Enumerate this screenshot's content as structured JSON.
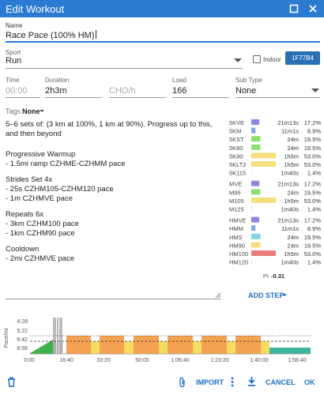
{
  "header": {
    "title": "Edit Workout"
  },
  "form": {
    "name": {
      "label": "Name",
      "value": "Race Pace (100% HM)"
    },
    "sport": {
      "label": "Sport",
      "value": "Run"
    },
    "indoor": {
      "label": "Indoor"
    },
    "color_button": "1F77B4",
    "time": {
      "label": "Time",
      "placeholder": "00:00"
    },
    "duration": {
      "label": "Duration",
      "value": "2h3m"
    },
    "cho": {
      "placeholder": "CHO/h"
    },
    "load": {
      "label": "Load",
      "value": "166"
    },
    "sub_type": {
      "label": "Sub Type",
      "value": "None"
    },
    "tags": {
      "label": "Tags",
      "value": "None"
    }
  },
  "description": [
    [
      "5–6 sets of: (3 km at 100%, 1 km at 90%). Progress up to this,",
      "and then beyond"
    ],
    [
      "Progressive Warmup",
      "- 1.5mi ramp CZHME-CZHMM pace"
    ],
    [
      "Strides Set 4x",
      "- 25s CZHM105-CZHM120 pace",
      "- 1m CZHMVE pace"
    ],
    [
      "Repeats 6x",
      "- 3km CZHM100 pace",
      "- 1km CZHM90 pace"
    ],
    [
      "Cooldown",
      "- 2mi CZHMVE pace"
    ]
  ],
  "zones": [
    [
      {
        "zone": "5KVE",
        "time": "21m13s",
        "percent": 17.2,
        "percent_label": "17.2%",
        "color": "#8c86e6"
      },
      {
        "zone": "5KM",
        "time": "11m1s",
        "percent": 8.9,
        "percent_label": "8.9%",
        "color": "#7ea8ea"
      },
      {
        "zone": "5KST",
        "time": "24m",
        "percent": 19.5,
        "percent_label": "19.5%",
        "color": "#8be06f"
      },
      {
        "zone": "5K80",
        "time": "24m",
        "percent": 19.5,
        "percent_label": "19.5%",
        "color": "#8be06f"
      },
      {
        "zone": "5K90",
        "time": "1h5m",
        "percent": 53.0,
        "percent_label": "53.0%",
        "color": "#f3e07c"
      },
      {
        "zone": "5KLT2",
        "time": "1h5m",
        "percent": 53.0,
        "percent_label": "53.0%",
        "color": "#f3e07c"
      },
      {
        "zone": "5K115",
        "time": "1m40s",
        "percent": 1.4,
        "percent_label": "1.4%",
        "color": "#e4e4e4"
      }
    ],
    [
      {
        "zone": "MVE",
        "time": "21m13s",
        "percent": 17.2,
        "percent_label": "17.2%",
        "color": "#8c86e6"
      },
      {
        "zone": "M95",
        "time": "24m",
        "percent": 19.5,
        "percent_label": "19.5%",
        "color": "#8be06f"
      },
      {
        "zone": "M105",
        "time": "1h5m",
        "percent": 53.0,
        "percent_label": "53.0%",
        "color": "#f3e07c"
      },
      {
        "zone": "M125",
        "time": "1m40s",
        "percent": 1.4,
        "percent_label": "1.4%",
        "color": "#e4e4e4"
      }
    ],
    [
      {
        "zone": "HMVE",
        "time": "21m13s",
        "percent": 17.2,
        "percent_label": "17.2%",
        "color": "#8c86e6"
      },
      {
        "zone": "HMM",
        "time": "11m1s",
        "percent": 8.9,
        "percent_label": "8.9%",
        "color": "#7ea8ea"
      },
      {
        "zone": "HMS",
        "time": "24m",
        "percent": 19.5,
        "percent_label": "19.5%",
        "color": "#7fd6e6"
      },
      {
        "zone": "HM90",
        "time": "24m",
        "percent": 19.5,
        "percent_label": "19.5%",
        "color": "#f3e07c"
      },
      {
        "zone": "HM100",
        "time": "1h5m",
        "percent": 53.0,
        "percent_label": "53.0%",
        "color": "#ec7c7c"
      },
      {
        "zone": "HM120",
        "time": "1m40s",
        "percent": 1.4,
        "percent_label": "1.4%",
        "color": "#e4e4e4"
      }
    ]
  ],
  "pi": {
    "label": "PI",
    "value": "-0.31"
  },
  "add_step": "ADD STEP",
  "chart": {
    "y_title": "Pace/mi",
    "y_labels": [
      "4:28",
      "5:22",
      "6:42",
      "8:56"
    ],
    "x_labels": [
      "0:00",
      "16:40",
      "33:20",
      "50:00",
      "1:06:40",
      "1:23:20",
      "1:40:00",
      "1:56:40"
    ]
  },
  "footer": {
    "import": "IMPORT",
    "cancel": "CANCEL",
    "ok": "OK"
  }
}
